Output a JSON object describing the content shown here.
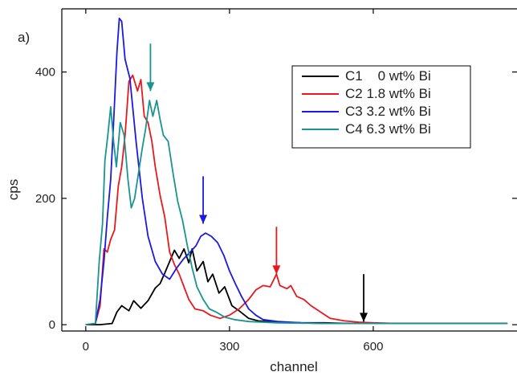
{
  "chart_data": {
    "type": "line",
    "panel_label": "a)",
    "xlabel": "channel",
    "ylabel": "cps",
    "xlim": [
      -50,
      900
    ],
    "ylim": [
      -10,
      500
    ],
    "x_ticks": [
      0,
      300,
      600
    ],
    "y_ticks": [
      0,
      200,
      400
    ],
    "legend_position": "upper-right",
    "series": [
      {
        "name": "C1    0 wt% Bi",
        "color": "#000000",
        "points": [
          [
            0,
            0
          ],
          [
            30,
            0
          ],
          [
            55,
            2
          ],
          [
            65,
            20
          ],
          [
            75,
            30
          ],
          [
            90,
            22
          ],
          [
            100,
            38
          ],
          [
            115,
            26
          ],
          [
            130,
            38
          ],
          [
            145,
            58
          ],
          [
            155,
            65
          ],
          [
            165,
            82
          ],
          [
            175,
            100
          ],
          [
            185,
            118
          ],
          [
            195,
            105
          ],
          [
            205,
            120
          ],
          [
            215,
            98
          ],
          [
            222,
            120
          ],
          [
            232,
            85
          ],
          [
            245,
            100
          ],
          [
            255,
            68
          ],
          [
            265,
            80
          ],
          [
            278,
            50
          ],
          [
            290,
            60
          ],
          [
            305,
            30
          ],
          [
            320,
            22
          ],
          [
            340,
            10
          ],
          [
            360,
            6
          ],
          [
            400,
            4
          ],
          [
            450,
            3
          ],
          [
            500,
            3
          ],
          [
            550,
            2
          ],
          [
            600,
            2
          ],
          [
            650,
            2
          ],
          [
            700,
            2
          ],
          [
            800,
            2
          ],
          [
            880,
            2
          ]
        ]
      },
      {
        "name": "C2 1.8 wt% Bi",
        "color": "#e8191e",
        "points": [
          [
            0,
            0
          ],
          [
            20,
            2
          ],
          [
            30,
            30
          ],
          [
            38,
            120
          ],
          [
            45,
            115
          ],
          [
            52,
            135
          ],
          [
            60,
            150
          ],
          [
            68,
            220
          ],
          [
            75,
            250
          ],
          [
            82,
            300
          ],
          [
            90,
            385
          ],
          [
            98,
            395
          ],
          [
            108,
            370
          ],
          [
            115,
            388
          ],
          [
            122,
            330
          ],
          [
            130,
            320
          ],
          [
            138,
            290
          ],
          [
            145,
            250
          ],
          [
            155,
            205
          ],
          [
            165,
            170
          ],
          [
            175,
            115
          ],
          [
            185,
            95
          ],
          [
            195,
            80
          ],
          [
            205,
            60
          ],
          [
            215,
            40
          ],
          [
            228,
            25
          ],
          [
            245,
            22
          ],
          [
            260,
            15
          ],
          [
            280,
            10
          ],
          [
            300,
            15
          ],
          [
            320,
            25
          ],
          [
            340,
            40
          ],
          [
            355,
            55
          ],
          [
            370,
            62
          ],
          [
            385,
            60
          ],
          [
            398,
            80
          ],
          [
            405,
            62
          ],
          [
            420,
            57
          ],
          [
            428,
            62
          ],
          [
            440,
            45
          ],
          [
            455,
            40
          ],
          [
            470,
            30
          ],
          [
            490,
            20
          ],
          [
            510,
            10
          ],
          [
            540,
            6
          ],
          [
            570,
            4
          ],
          [
            600,
            3
          ],
          [
            650,
            2
          ],
          [
            700,
            2
          ],
          [
            800,
            2
          ],
          [
            880,
            2
          ]
        ]
      },
      {
        "name": "C3 3.2 wt% Bi",
        "color": "#1a1ae0",
        "points": [
          [
            0,
            0
          ],
          [
            20,
            2
          ],
          [
            30,
            40
          ],
          [
            38,
            100
          ],
          [
            45,
            170
          ],
          [
            52,
            230
          ],
          [
            58,
            320
          ],
          [
            65,
            430
          ],
          [
            70,
            485
          ],
          [
            75,
            480
          ],
          [
            82,
            420
          ],
          [
            92,
            390
          ],
          [
            105,
            290
          ],
          [
            118,
            200
          ],
          [
            130,
            140
          ],
          [
            145,
            100
          ],
          [
            160,
            80
          ],
          [
            175,
            72
          ],
          [
            190,
            90
          ],
          [
            205,
            105
          ],
          [
            218,
            115
          ],
          [
            230,
            125
          ],
          [
            240,
            140
          ],
          [
            250,
            145
          ],
          [
            262,
            140
          ],
          [
            275,
            130
          ],
          [
            288,
            110
          ],
          [
            300,
            85
          ],
          [
            312,
            65
          ],
          [
            325,
            45
          ],
          [
            340,
            25
          ],
          [
            355,
            15
          ],
          [
            370,
            8
          ],
          [
            400,
            5
          ],
          [
            450,
            3
          ],
          [
            500,
            2
          ],
          [
            600,
            2
          ],
          [
            700,
            2
          ],
          [
            800,
            2
          ],
          [
            880,
            2
          ]
        ]
      },
      {
        "name": "C4 6.3 wt% Bi",
        "color": "#1a9490",
        "points": [
          [
            0,
            0
          ],
          [
            20,
            2
          ],
          [
            28,
            100
          ],
          [
            35,
            160
          ],
          [
            40,
            260
          ],
          [
            46,
            300
          ],
          [
            52,
            345
          ],
          [
            58,
            290
          ],
          [
            64,
            250
          ],
          [
            72,
            320
          ],
          [
            80,
            300
          ],
          [
            88,
            230
          ],
          [
            95,
            185
          ],
          [
            102,
            200
          ],
          [
            110,
            240
          ],
          [
            118,
            280
          ],
          [
            125,
            310
          ],
          [
            133,
            355
          ],
          [
            140,
            330
          ],
          [
            148,
            355
          ],
          [
            155,
            325
          ],
          [
            162,
            300
          ],
          [
            172,
            290
          ],
          [
            182,
            240
          ],
          [
            192,
            195
          ],
          [
            202,
            165
          ],
          [
            212,
            125
          ],
          [
            222,
            90
          ],
          [
            232,
            60
          ],
          [
            245,
            40
          ],
          [
            258,
            25
          ],
          [
            272,
            20
          ],
          [
            290,
            12
          ],
          [
            310,
            8
          ],
          [
            340,
            5
          ],
          [
            400,
            3
          ],
          [
            500,
            2
          ],
          [
            600,
            2
          ],
          [
            700,
            2
          ],
          [
            800,
            2
          ],
          [
            880,
            2
          ]
        ]
      }
    ],
    "arrows": [
      {
        "x": 135,
        "y_tip": 380,
        "y_tail": 445,
        "color": "#1a9490"
      },
      {
        "x": 245,
        "y_tip": 170,
        "y_tail": 235,
        "color": "#1a1ae0"
      },
      {
        "x": 398,
        "y_tip": 90,
        "y_tail": 155,
        "color": "#e8191e"
      },
      {
        "x": 580,
        "y_tip": 15,
        "y_tail": 80,
        "color": "#000000"
      }
    ]
  }
}
